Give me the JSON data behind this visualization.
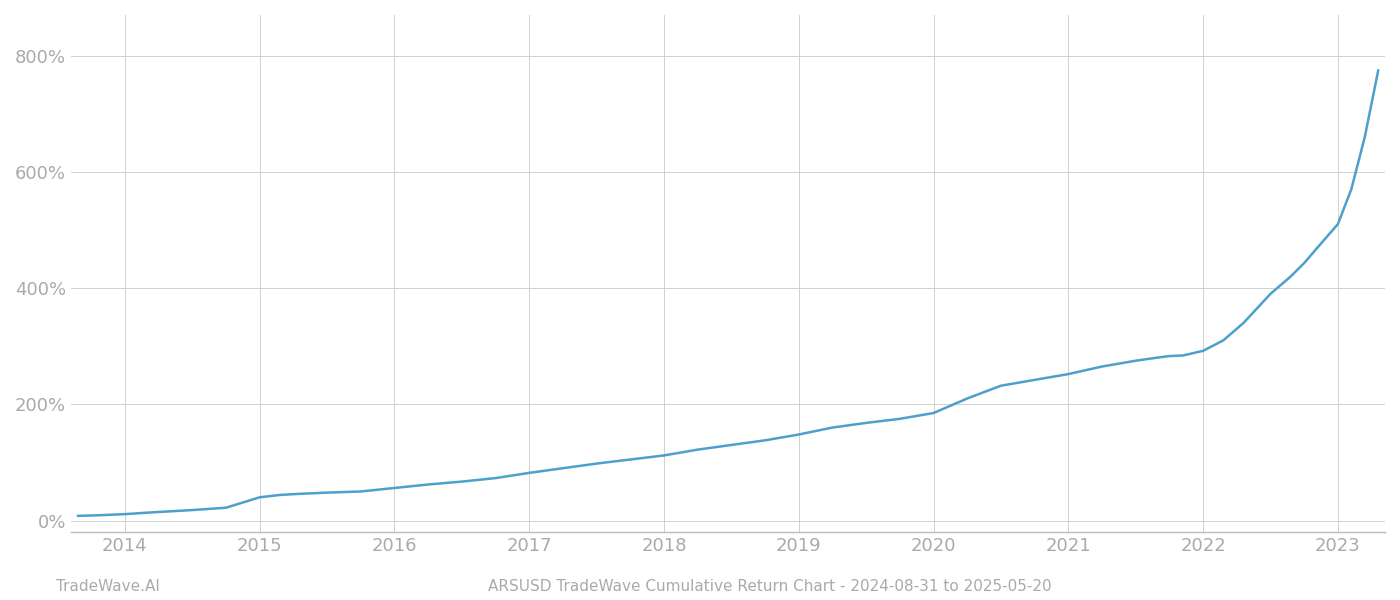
{
  "title": "ARSUSD TradeWave Cumulative Return Chart - 2024-08-31 to 2025-05-20",
  "watermark": "TradeWave.AI",
  "line_color": "#4d9fcc",
  "background_color": "#ffffff",
  "grid_color": "#d0d0d0",
  "text_color": "#aaaaaa",
  "x_years": [
    2014,
    2015,
    2016,
    2017,
    2018,
    2019,
    2020,
    2021,
    2022,
    2023
  ],
  "y_ticks": [
    0,
    200,
    400,
    600,
    800
  ],
  "ylim": [
    -20,
    870
  ],
  "xlim": [
    2013.6,
    2023.35
  ],
  "data_points": [
    [
      2013.65,
      8
    ],
    [
      2013.8,
      9
    ],
    [
      2014.0,
      11
    ],
    [
      2014.2,
      14
    ],
    [
      2014.5,
      18
    ],
    [
      2014.75,
      22
    ],
    [
      2015.0,
      40
    ],
    [
      2015.15,
      44
    ],
    [
      2015.3,
      46
    ],
    [
      2015.5,
      48
    ],
    [
      2015.75,
      50
    ],
    [
      2016.0,
      56
    ],
    [
      2016.25,
      62
    ],
    [
      2016.5,
      67
    ],
    [
      2016.75,
      73
    ],
    [
      2017.0,
      82
    ],
    [
      2017.25,
      90
    ],
    [
      2017.5,
      98
    ],
    [
      2017.75,
      105
    ],
    [
      2018.0,
      112
    ],
    [
      2018.25,
      122
    ],
    [
      2018.5,
      130
    ],
    [
      2018.75,
      138
    ],
    [
      2019.0,
      148
    ],
    [
      2019.25,
      160
    ],
    [
      2019.5,
      168
    ],
    [
      2019.75,
      175
    ],
    [
      2020.0,
      185
    ],
    [
      2020.25,
      210
    ],
    [
      2020.5,
      232
    ],
    [
      2020.75,
      242
    ],
    [
      2021.0,
      252
    ],
    [
      2021.25,
      265
    ],
    [
      2021.5,
      275
    ],
    [
      2021.65,
      280
    ],
    [
      2021.75,
      283
    ],
    [
      2021.85,
      284
    ],
    [
      2022.0,
      292
    ],
    [
      2022.15,
      310
    ],
    [
      2022.3,
      340
    ],
    [
      2022.5,
      390
    ],
    [
      2022.65,
      420
    ],
    [
      2022.75,
      443
    ],
    [
      2022.85,
      470
    ],
    [
      2023.0,
      510
    ],
    [
      2023.1,
      570
    ],
    [
      2023.2,
      660
    ],
    [
      2023.3,
      775
    ]
  ],
  "line_width": 1.8,
  "figsize": [
    14.0,
    6.0
  ],
  "dpi": 100
}
